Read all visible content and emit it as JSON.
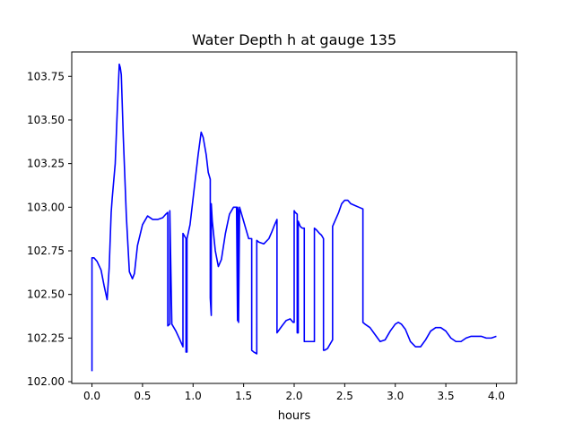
{
  "figure": {
    "title": "Water Depth h at gauge 135",
    "xlabel": "hours",
    "ylabel": ""
  },
  "chart_data": {
    "type": "line",
    "title": "Water Depth h at gauge 135",
    "xlabel": "hours",
    "ylabel": "",
    "xlim": [
      -0.2,
      4.2
    ],
    "ylim": [
      101.99,
      103.89
    ],
    "xticks": [
      0.0,
      0.5,
      1.0,
      1.5,
      2.0,
      2.5,
      3.0,
      3.5,
      4.0
    ],
    "xtick_labels": [
      "0.0",
      "0.5",
      "1.0",
      "1.5",
      "2.0",
      "2.5",
      "3.0",
      "3.5",
      "4.0"
    ],
    "yticks": [
      102.0,
      102.25,
      102.5,
      102.75,
      103.0,
      103.25,
      103.5,
      103.75
    ],
    "ytick_labels": [
      "102.00",
      "102.25",
      "102.50",
      "102.75",
      "103.00",
      "103.25",
      "103.50",
      "103.75"
    ],
    "grid": false,
    "legend": "none",
    "series": [
      {
        "color": "#0000ff",
        "x": [
          0.0,
          0.0,
          0.02,
          0.05,
          0.09,
          0.12,
          0.15,
          0.17,
          0.19,
          0.2,
          0.23,
          0.25,
          0.27,
          0.28,
          0.29,
          0.31,
          0.34,
          0.37,
          0.4,
          0.42,
          0.45,
          0.5,
          0.55,
          0.6,
          0.65,
          0.7,
          0.73,
          0.75,
          0.75,
          0.77,
          0.77,
          0.79,
          0.83,
          0.87,
          0.9,
          0.9,
          0.93,
          0.93,
          0.94,
          0.94,
          0.97,
          1.01,
          1.05,
          1.08,
          1.1,
          1.13,
          1.15,
          1.17,
          1.17,
          1.18,
          1.18,
          1.19,
          1.22,
          1.25,
          1.28,
          1.32,
          1.36,
          1.4,
          1.43,
          1.44,
          1.44,
          1.45,
          1.45,
          1.46,
          1.46,
          1.47,
          1.5,
          1.53,
          1.55,
          1.58,
          1.58,
          1.6,
          1.63,
          1.63,
          1.65,
          1.7,
          1.75,
          1.78,
          1.8,
          1.83,
          1.83,
          1.88,
          1.92,
          1.96,
          1.99,
          2.0,
          2.0,
          2.01,
          2.03,
          2.03,
          2.04,
          2.04,
          2.06,
          2.08,
          2.1,
          2.1,
          2.13,
          2.17,
          2.2,
          2.2,
          2.22,
          2.25,
          2.27,
          2.29,
          2.29,
          2.3,
          2.33,
          2.35,
          2.38,
          2.38,
          2.41,
          2.44,
          2.47,
          2.5,
          2.53,
          2.56,
          2.6,
          2.64,
          2.68,
          2.68,
          2.7,
          2.75,
          2.8,
          2.85,
          2.9,
          2.95,
          3.0,
          3.03,
          3.06,
          3.1,
          3.15,
          3.2,
          3.25,
          3.3,
          3.35,
          3.4,
          3.45,
          3.5,
          3.55,
          3.6,
          3.65,
          3.7,
          3.75,
          3.8,
          3.85,
          3.9,
          3.95,
          4.0
        ],
        "y": [
          102.06,
          102.71,
          102.71,
          102.69,
          102.64,
          102.55,
          102.47,
          102.65,
          102.97,
          103.05,
          103.25,
          103.55,
          103.82,
          103.8,
          103.76,
          103.4,
          102.95,
          102.63,
          102.59,
          102.62,
          102.78,
          102.9,
          102.95,
          102.93,
          102.93,
          102.94,
          102.96,
          102.97,
          102.32,
          102.33,
          102.98,
          102.33,
          102.29,
          102.24,
          102.2,
          102.85,
          102.82,
          102.17,
          102.17,
          102.82,
          102.9,
          103.1,
          103.3,
          103.43,
          103.4,
          103.3,
          103.2,
          103.16,
          102.48,
          102.38,
          103.02,
          102.92,
          102.75,
          102.66,
          102.7,
          102.85,
          102.96,
          103.0,
          103.0,
          102.35,
          103.0,
          102.97,
          102.34,
          103.0,
          103.0,
          102.98,
          102.92,
          102.86,
          102.82,
          102.82,
          102.18,
          102.17,
          102.16,
          102.81,
          102.8,
          102.79,
          102.82,
          102.86,
          102.89,
          102.93,
          102.28,
          102.32,
          102.35,
          102.36,
          102.34,
          102.34,
          102.98,
          102.97,
          102.96,
          102.28,
          102.28,
          102.92,
          102.89,
          102.88,
          102.88,
          102.23,
          102.23,
          102.23,
          102.23,
          102.88,
          102.87,
          102.85,
          102.84,
          102.82,
          102.18,
          102.18,
          102.19,
          102.21,
          102.24,
          102.89,
          102.93,
          102.97,
          103.02,
          103.04,
          103.04,
          103.02,
          103.01,
          103.0,
          102.99,
          102.34,
          102.33,
          102.31,
          102.27,
          102.23,
          102.24,
          102.29,
          102.33,
          102.34,
          102.33,
          102.3,
          102.23,
          102.2,
          102.2,
          102.24,
          102.29,
          102.31,
          102.31,
          102.29,
          102.25,
          102.23,
          102.23,
          102.25,
          102.26,
          102.26,
          102.26,
          102.25,
          102.25,
          102.26
        ]
      }
    ]
  }
}
